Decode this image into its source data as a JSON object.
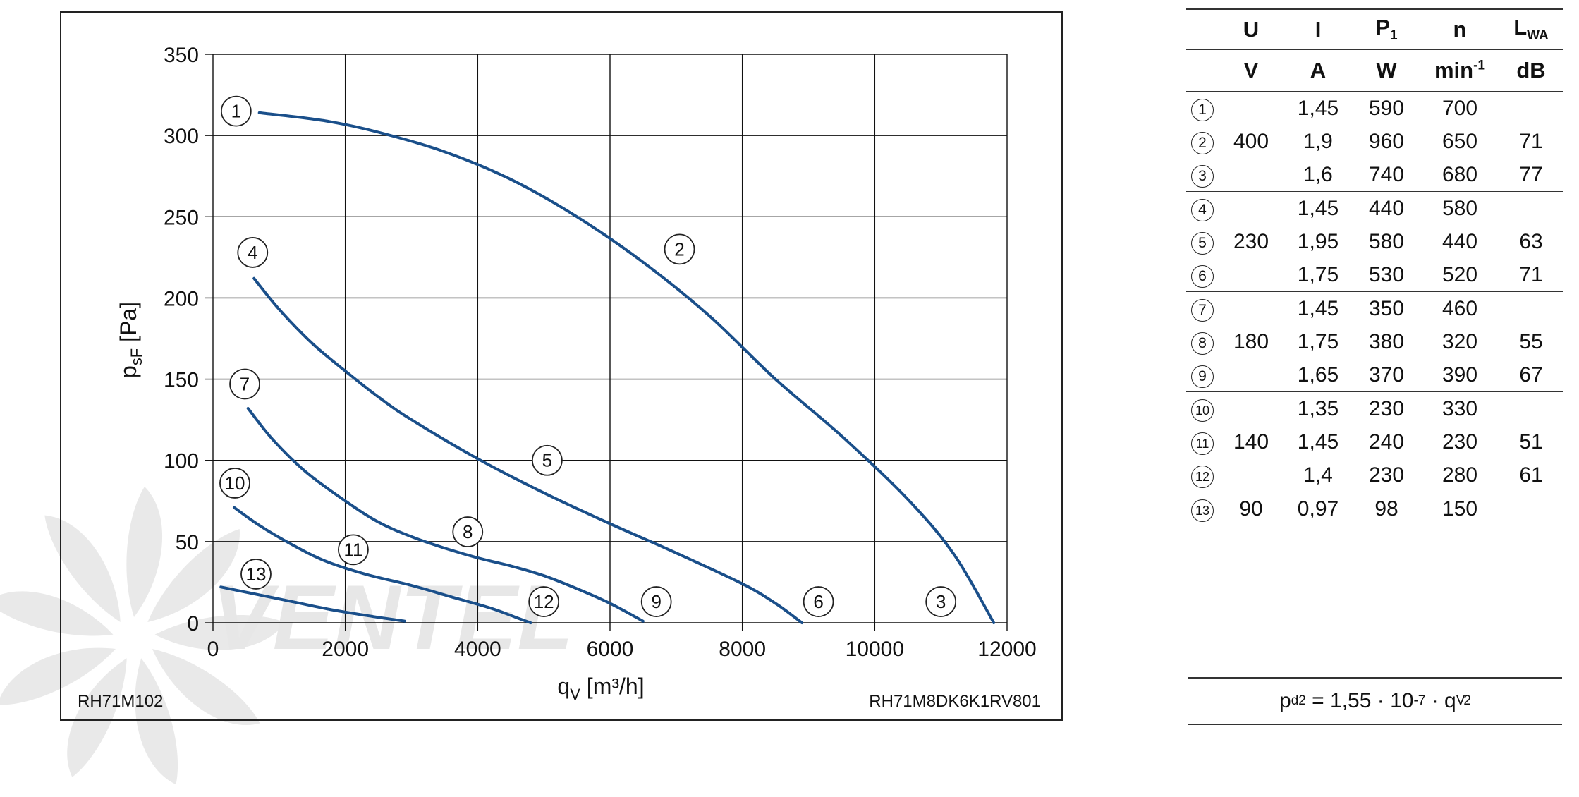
{
  "chart_data": {
    "type": "line",
    "xlabel_main": "q",
    "xlabel_sub": "V",
    "xlabel_unit": " [m³/h]",
    "ylabel_main": "p",
    "ylabel_sub": "sF",
    "ylabel_unit": " [Pa]",
    "xlim": [
      0,
      12000
    ],
    "ylim": [
      0,
      350
    ],
    "x_ticks": [
      0,
      2000,
      4000,
      6000,
      8000,
      10000,
      12000
    ],
    "y_ticks": [
      0,
      50,
      100,
      150,
      200,
      250,
      300,
      350
    ],
    "grid": true,
    "line_color": "#1a4f8a",
    "watermark_text": "VENTEL",
    "series": [
      {
        "name": "2",
        "x": [
          700,
          1700,
          2500,
          3500,
          4500,
          5500,
          6500,
          7500,
          8500,
          9500,
          10500,
          11200,
          11800
        ],
        "y": [
          314,
          309,
          302,
          290,
          273,
          250,
          222,
          189,
          150,
          115,
          76,
          42,
          0
        ]
      },
      {
        "name": "5",
        "x": [
          620,
          1000,
          1500,
          2000,
          2500,
          3000,
          4000,
          5000,
          6000,
          7000,
          8000,
          8500,
          8900
        ],
        "y": [
          212,
          193,
          172,
          155,
          139,
          125,
          101,
          80,
          61,
          43,
          24,
          12,
          0
        ]
      },
      {
        "name": "8",
        "x": [
          530,
          900,
          1400,
          2000,
          2500,
          3000,
          3500,
          4000,
          4500,
          5000,
          5500,
          6000,
          6500
        ],
        "y": [
          132,
          113,
          93,
          75,
          62,
          53,
          46,
          40,
          35,
          29,
          21,
          12,
          1
        ]
      },
      {
        "name": "11",
        "x": [
          320,
          700,
          1200,
          1700,
          2300,
          3000,
          3600,
          4200,
          4600,
          4800
        ],
        "y": [
          71,
          60,
          48,
          38,
          30,
          23,
          16,
          9,
          3,
          0
        ]
      },
      {
        "name": "13",
        "x": [
          120,
          600,
          1200,
          1800,
          2400,
          2900
        ],
        "y": [
          22,
          18,
          13,
          8,
          4,
          1
        ]
      }
    ],
    "curve_markers": [
      {
        "label": "1",
        "x": 350,
        "y": 315
      },
      {
        "label": "2",
        "x": 7050,
        "y": 230
      },
      {
        "label": "3",
        "x": 11000,
        "y": 13
      },
      {
        "label": "4",
        "x": 600,
        "y": 228
      },
      {
        "label": "5",
        "x": 5050,
        "y": 100
      },
      {
        "label": "6",
        "x": 9150,
        "y": 13
      },
      {
        "label": "7",
        "x": 480,
        "y": 147
      },
      {
        "label": "8",
        "x": 3850,
        "y": 56
      },
      {
        "label": "9",
        "x": 6700,
        "y": 13
      },
      {
        "label": "10",
        "x": 330,
        "y": 86
      },
      {
        "label": "11",
        "x": 2120,
        "y": 45
      },
      {
        "label": "12",
        "x": 5000,
        "y": 13
      },
      {
        "label": "13",
        "x": 650,
        "y": 30
      }
    ],
    "code_left": "RH71M102",
    "code_right": "RH71M8DK6K1RV801"
  },
  "table": {
    "header_top": [
      "U",
      "I",
      "P",
      "n",
      "L"
    ],
    "header_top_sub": [
      "",
      "",
      "1",
      "",
      "WA"
    ],
    "header_units": [
      "V",
      "A",
      "W",
      "min",
      "dB"
    ],
    "min_exp": "-1",
    "groups": [
      {
        "U": "400",
        "rows": [
          {
            "id": "1",
            "I": "1,45",
            "P": "590",
            "n": "700",
            "L": ""
          },
          {
            "id": "2",
            "I": "1,9",
            "P": "960",
            "n": "650",
            "L": "71"
          },
          {
            "id": "3",
            "I": "1,6",
            "P": "740",
            "n": "680",
            "L": "77"
          }
        ]
      },
      {
        "U": "230",
        "rows": [
          {
            "id": "4",
            "I": "1,45",
            "P": "440",
            "n": "580",
            "L": ""
          },
          {
            "id": "5",
            "I": "1,95",
            "P": "580",
            "n": "440",
            "L": "63"
          },
          {
            "id": "6",
            "I": "1,75",
            "P": "530",
            "n": "520",
            "L": "71"
          }
        ]
      },
      {
        "U": "180",
        "rows": [
          {
            "id": "7",
            "I": "1,45",
            "P": "350",
            "n": "460",
            "L": ""
          },
          {
            "id": "8",
            "I": "1,75",
            "P": "380",
            "n": "320",
            "L": "55"
          },
          {
            "id": "9",
            "I": "1,65",
            "P": "370",
            "n": "390",
            "L": "67"
          }
        ]
      },
      {
        "U": "140",
        "rows": [
          {
            "id": "10",
            "I": "1,35",
            "P": "230",
            "n": "330",
            "L": ""
          },
          {
            "id": "11",
            "I": "1,45",
            "P": "240",
            "n": "230",
            "L": "51"
          },
          {
            "id": "12",
            "I": "1,4",
            "P": "230",
            "n": "280",
            "L": "61"
          }
        ]
      },
      {
        "U": "90",
        "rows": [
          {
            "id": "13",
            "I": "0,97",
            "P": "98",
            "n": "150",
            "L": ""
          }
        ]
      }
    ]
  },
  "formula": {
    "lhs": "p",
    "lhs_sub": "d2",
    "eq": " = 1,55 · 10",
    "exp": "-7",
    "mid": " · q",
    "q_sub": "V",
    "q_exp": "2"
  }
}
